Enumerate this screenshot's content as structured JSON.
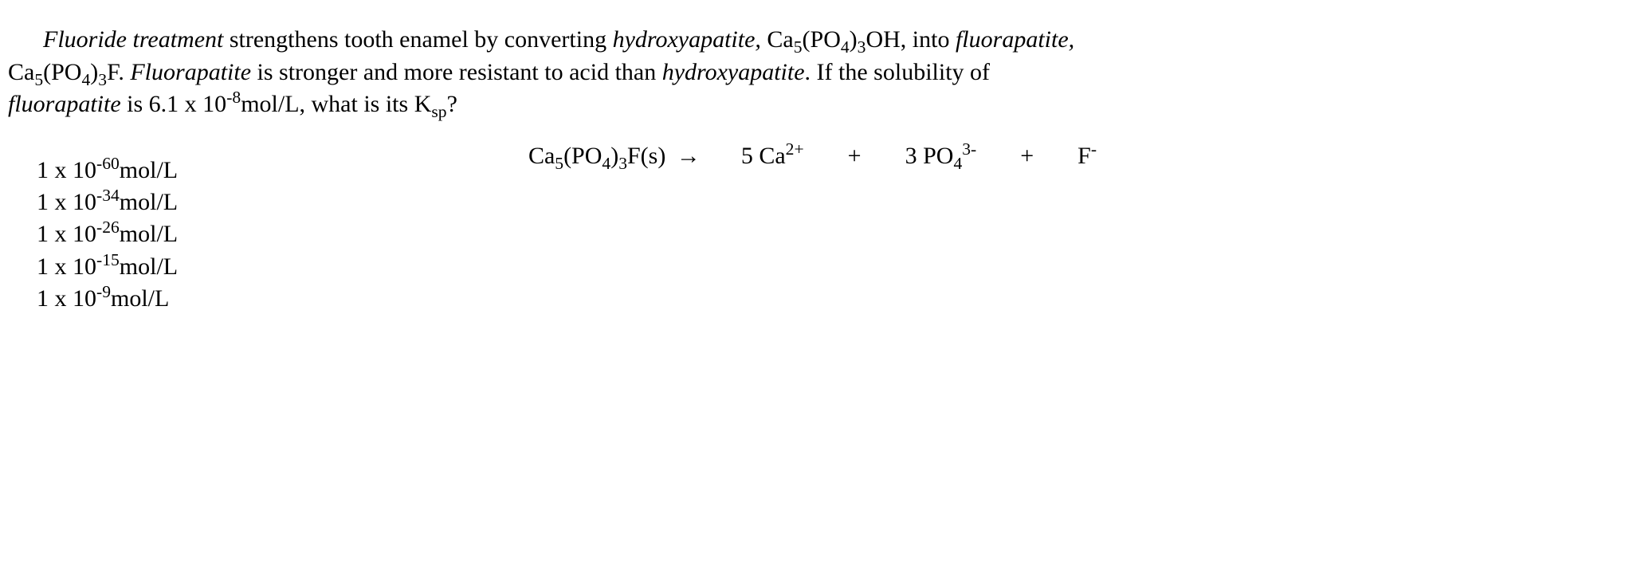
{
  "question": {
    "part1_a": "Fluoride treatment",
    "part1_b": " strengthens tooth enamel by converting ",
    "part1_c": "hydroxyapatite,",
    "part1_d": " Ca",
    "part1_e": "5",
    "part1_f": "(PO",
    "part1_g": "4",
    "part1_h": ")",
    "part1_i": "3",
    "part1_j": "OH, into ",
    "part1_k": "fluorapatite,",
    "part2_a": "Ca",
    "part2_b": "5",
    "part2_c": "(PO",
    "part2_d": "4",
    "part2_e": ")",
    "part2_f": "3",
    "part2_g": "F.  ",
    "part2_h": "Fluorapatite",
    "part2_i": " is stronger and more resistant to acid than ",
    "part2_j": "hydroxyapatite",
    "part2_k": ".  If the solubility of ",
    "part3_a": "fluorapatite",
    "part3_b": " is 6.1 x 10",
    "part3_c": "-8",
    "part3_d": "mol/L, what is its K",
    "part3_e": "sp",
    "part3_f": "?"
  },
  "equation": {
    "lhs_a": "Ca",
    "lhs_b": "5",
    "lhs_c": "(PO",
    "lhs_d": "4",
    "lhs_e": ")",
    "lhs_f": "3",
    "lhs_g": "F(s)",
    "arrow": "→",
    "r1_coef": "5 Ca",
    "r1_sup": "2+",
    "plus1": "+",
    "r2_coef": "3 PO",
    "r2_sub": "4",
    "r2_sup": "3-",
    "plus2": "+",
    "r3": "F",
    "r3_sup": "-"
  },
  "answers": {
    "a1_a": "1 x 10",
    "a1_b": "-60",
    "a1_c": "mol/L",
    "a2_a": "1 x 10",
    "a2_b": "-34",
    "a2_c": "mol/L",
    "a3_a": "1 x 10",
    "a3_b": "-26",
    "a3_c": "mol/L",
    "a4_a": "1 x 10",
    "a4_b": "-15",
    "a4_c": "mol/L",
    "a5_a": "1 x 10",
    "a5_b": "-9",
    "a5_c": "mol/L"
  },
  "style": {
    "font_family": "Times New Roman",
    "font_size_pt": 22,
    "text_color": "#000000",
    "background_color": "#ffffff"
  }
}
